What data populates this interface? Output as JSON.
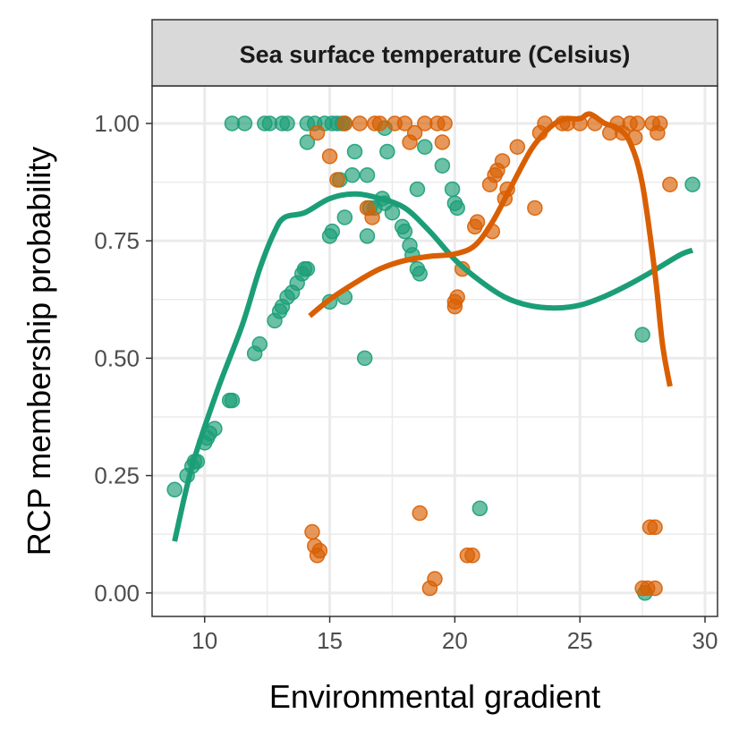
{
  "chart_data": {
    "type": "scatter",
    "facet_title": "Sea surface temperature (Celsius)",
    "xlabel": "Environmental gradient",
    "ylabel": "RCP membership probability",
    "xlim": [
      7.9,
      30.5
    ],
    "ylim": [
      -0.05,
      1.08
    ],
    "x_ticks": [
      10,
      15,
      20,
      25,
      30
    ],
    "x_tick_labels": [
      "10",
      "15",
      "20",
      "25",
      "30"
    ],
    "y_ticks": [
      0,
      0.25,
      0.5,
      0.75,
      1
    ],
    "y_tick_labels": [
      "0.00",
      "0.25",
      "0.50",
      "0.75",
      "1.00"
    ],
    "grid": true,
    "legend": "none",
    "series": [
      {
        "color": "#1b9e77",
        "points": [
          [
            8.8,
            0.22
          ],
          [
            9.3,
            0.25
          ],
          [
            9.5,
            0.27
          ],
          [
            9.6,
            0.28
          ],
          [
            9.7,
            0.28
          ],
          [
            10.0,
            0.32
          ],
          [
            10.1,
            0.33
          ],
          [
            10.2,
            0.34
          ],
          [
            10.4,
            0.35
          ],
          [
            11.0,
            0.41
          ],
          [
            11.1,
            0.41
          ],
          [
            12.0,
            0.51
          ],
          [
            12.2,
            0.53
          ],
          [
            12.8,
            0.58
          ],
          [
            13.0,
            0.6
          ],
          [
            13.1,
            0.61
          ],
          [
            13.3,
            0.63
          ],
          [
            13.5,
            0.64
          ],
          [
            13.7,
            0.66
          ],
          [
            13.9,
            0.68
          ],
          [
            14.0,
            0.69
          ],
          [
            14.1,
            0.69
          ],
          [
            15.0,
            0.62
          ],
          [
            15.6,
            0.63
          ],
          [
            15.0,
            0.76
          ],
          [
            15.1,
            0.77
          ],
          [
            15.6,
            0.8
          ],
          [
            16.4,
            0.5
          ],
          [
            16.5,
            0.76
          ],
          [
            16.6,
            0.82
          ],
          [
            16.8,
            0.82
          ],
          [
            17.1,
            0.84
          ],
          [
            17.2,
            0.83
          ],
          [
            17.5,
            0.81
          ],
          [
            17.9,
            0.78
          ],
          [
            18.0,
            0.77
          ],
          [
            18.2,
            0.74
          ],
          [
            18.3,
            0.72
          ],
          [
            18.5,
            0.69
          ],
          [
            18.6,
            0.68
          ],
          [
            18.5,
            0.86
          ],
          [
            19.5,
            0.91
          ],
          [
            19.9,
            0.86
          ],
          [
            20.0,
            0.83
          ],
          [
            20.1,
            0.82
          ],
          [
            21.0,
            0.18
          ],
          [
            11.1,
            1.0
          ],
          [
            11.6,
            1.0
          ],
          [
            12.4,
            1.0
          ],
          [
            12.6,
            1.0
          ],
          [
            13.1,
            1.0
          ],
          [
            13.3,
            1.0
          ],
          [
            14.1,
            1.0
          ],
          [
            14.4,
            1.0
          ],
          [
            14.8,
            1.0
          ],
          [
            15.1,
            1.0
          ],
          [
            15.3,
            1.0
          ],
          [
            15.5,
            1.0
          ],
          [
            15.6,
            1.0
          ],
          [
            17.2,
            0.99
          ],
          [
            14.1,
            0.96
          ],
          [
            15.4,
            0.88
          ],
          [
            15.9,
            0.89
          ],
          [
            16.0,
            0.94
          ],
          [
            16.5,
            0.89
          ],
          [
            17.3,
            0.94
          ],
          [
            18.8,
            0.95
          ],
          [
            27.5,
            0.55
          ],
          [
            27.6,
            0.0
          ],
          [
            29.5,
            0.87
          ]
        ],
        "smooth": [
          [
            8.8,
            0.11
          ],
          [
            9.5,
            0.27
          ],
          [
            10.5,
            0.43
          ],
          [
            11.5,
            0.57
          ],
          [
            12.2,
            0.69
          ],
          [
            12.8,
            0.77
          ],
          [
            13.2,
            0.8
          ],
          [
            14.0,
            0.81
          ],
          [
            15.0,
            0.84
          ],
          [
            16.0,
            0.85
          ],
          [
            17.0,
            0.84
          ],
          [
            18.0,
            0.82
          ],
          [
            19.0,
            0.77
          ],
          [
            20.0,
            0.71
          ],
          [
            21.0,
            0.665
          ],
          [
            22.0,
            0.63
          ],
          [
            23.0,
            0.612
          ],
          [
            24.0,
            0.607
          ],
          [
            25.0,
            0.613
          ],
          [
            26.0,
            0.632
          ],
          [
            27.0,
            0.658
          ],
          [
            28.0,
            0.688
          ],
          [
            29.0,
            0.72
          ],
          [
            29.5,
            0.73
          ]
        ]
      },
      {
        "color": "#d95f02",
        "points": [
          [
            14.3,
            0.13
          ],
          [
            14.4,
            0.1
          ],
          [
            14.5,
            0.08
          ],
          [
            14.6,
            0.09
          ],
          [
            14.5,
            0.98
          ],
          [
            15.0,
            0.93
          ],
          [
            15.3,
            0.88
          ],
          [
            16.5,
            0.82
          ],
          [
            16.7,
            0.8
          ],
          [
            18.2,
            0.96
          ],
          [
            18.4,
            0.98
          ],
          [
            18.6,
            0.17
          ],
          [
            19.0,
            0.01
          ],
          [
            19.2,
            0.03
          ],
          [
            19.5,
            0.96
          ],
          [
            20.0,
            0.62
          ],
          [
            20.0,
            0.61
          ],
          [
            20.1,
            0.63
          ],
          [
            20.3,
            0.69
          ],
          [
            20.5,
            0.08
          ],
          [
            20.7,
            0.08
          ],
          [
            20.8,
            0.78
          ],
          [
            20.9,
            0.79
          ],
          [
            21.5,
            0.77
          ],
          [
            21.4,
            0.87
          ],
          [
            21.6,
            0.89
          ],
          [
            21.7,
            0.9
          ],
          [
            21.9,
            0.92
          ],
          [
            22.0,
            0.84
          ],
          [
            22.1,
            0.86
          ],
          [
            22.5,
            0.95
          ],
          [
            23.2,
            0.82
          ],
          [
            23.4,
            0.98
          ],
          [
            24.3,
            1.0
          ],
          [
            26.2,
            0.98
          ],
          [
            26.7,
            0.98
          ],
          [
            27.2,
            0.97
          ],
          [
            27.5,
            0.01
          ],
          [
            27.7,
            0.01
          ],
          [
            27.8,
            0.14
          ],
          [
            28.0,
            0.01
          ],
          [
            28.0,
            0.14
          ],
          [
            28.1,
            0.98
          ],
          [
            28.6,
            0.87
          ],
          [
            15.6,
            1.0
          ],
          [
            16.2,
            1.0
          ],
          [
            16.8,
            1.0
          ],
          [
            17.0,
            1.0
          ],
          [
            17.6,
            1.0
          ],
          [
            18.0,
            1.0
          ],
          [
            18.8,
            1.0
          ],
          [
            19.3,
            1.0
          ],
          [
            19.6,
            1.0
          ],
          [
            23.6,
            1.0
          ],
          [
            24.5,
            1.0
          ],
          [
            25.0,
            1.0
          ],
          [
            25.6,
            1.0
          ],
          [
            26.5,
            1.0
          ],
          [
            27.0,
            1.0
          ],
          [
            27.3,
            1.0
          ],
          [
            27.9,
            1.0
          ],
          [
            28.2,
            1.0
          ]
        ],
        "smooth": [
          [
            14.2,
            0.59
          ],
          [
            15.0,
            0.625
          ],
          [
            16.0,
            0.66
          ],
          [
            17.0,
            0.69
          ],
          [
            18.0,
            0.708
          ],
          [
            19.0,
            0.717
          ],
          [
            20.0,
            0.722
          ],
          [
            20.8,
            0.74
          ],
          [
            21.5,
            0.79
          ],
          [
            22.2,
            0.86
          ],
          [
            23.0,
            0.94
          ],
          [
            23.5,
            0.975
          ],
          [
            24.0,
            1.0
          ],
          [
            24.5,
            1.01
          ],
          [
            25.0,
            1.01
          ],
          [
            25.4,
            1.02
          ],
          [
            26.0,
            1.0
          ],
          [
            26.5,
            0.99
          ],
          [
            27.0,
            0.96
          ],
          [
            27.5,
            0.87
          ],
          [
            28.0,
            0.68
          ],
          [
            28.3,
            0.53
          ],
          [
            28.6,
            0.44
          ]
        ]
      }
    ]
  }
}
